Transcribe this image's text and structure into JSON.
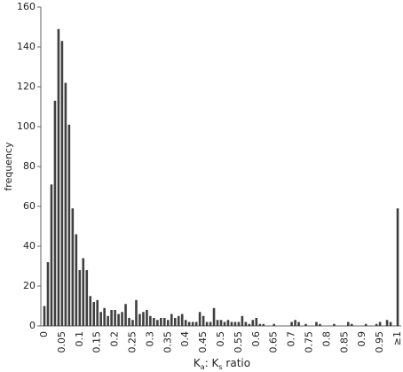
{
  "chart_data": {
    "type": "bar",
    "y_label": "frequency",
    "x_label": [
      "K",
      "a",
      ": K",
      "s",
      " ratio"
    ],
    "categories": [
      "0",
      null,
      null,
      null,
      null,
      "0.05",
      null,
      null,
      null,
      null,
      "0.1",
      null,
      null,
      null,
      null,
      "0.15",
      null,
      null,
      null,
      null,
      "0.2",
      null,
      null,
      null,
      null,
      "0.25",
      null,
      null,
      null,
      null,
      "0.3",
      null,
      null,
      null,
      null,
      "0.35",
      null,
      null,
      null,
      null,
      "0.4",
      null,
      null,
      null,
      null,
      "0.45",
      null,
      null,
      null,
      null,
      "0.5",
      null,
      null,
      null,
      null,
      "0.55",
      null,
      null,
      null,
      null,
      "0.6",
      null,
      null,
      null,
      null,
      "0.65",
      null,
      null,
      null,
      null,
      "0.7",
      null,
      null,
      null,
      null,
      "0.75",
      null,
      null,
      null,
      null,
      "0.8",
      null,
      null,
      null,
      null,
      "0.85",
      null,
      null,
      null,
      null,
      "0.9",
      null,
      null,
      null,
      null,
      "0.95",
      null,
      null,
      null,
      null,
      "≥1"
    ],
    "values": [
      10,
      32,
      71,
      113,
      149,
      143,
      122,
      101,
      59,
      46,
      28,
      34,
      28,
      15,
      12,
      13,
      7,
      9,
      5,
      8,
      8,
      6,
      7,
      11,
      4,
      3,
      13,
      6,
      7,
      8,
      5,
      4,
      3,
      4,
      4,
      3,
      6,
      4,
      5,
      6,
      3,
      2,
      2,
      2,
      7,
      5,
      2,
      2,
      9,
      3,
      3,
      2,
      3,
      2,
      2,
      2,
      5,
      2,
      1,
      3,
      4,
      1,
      1,
      0,
      0,
      1,
      0,
      0,
      0,
      0,
      2,
      3,
      2,
      0,
      1,
      0,
      0,
      2,
      1,
      0,
      0,
      0,
      1,
      0,
      0,
      0,
      2,
      1,
      0,
      0,
      0,
      1,
      0,
      0,
      1,
      2,
      0,
      3,
      2,
      0,
      59
    ],
    "color": "#404040",
    "ylim": [
      0,
      160
    ],
    "yticks": [
      0,
      20,
      40,
      60,
      80,
      100,
      120,
      140,
      160
    ],
    "grid": false
  }
}
